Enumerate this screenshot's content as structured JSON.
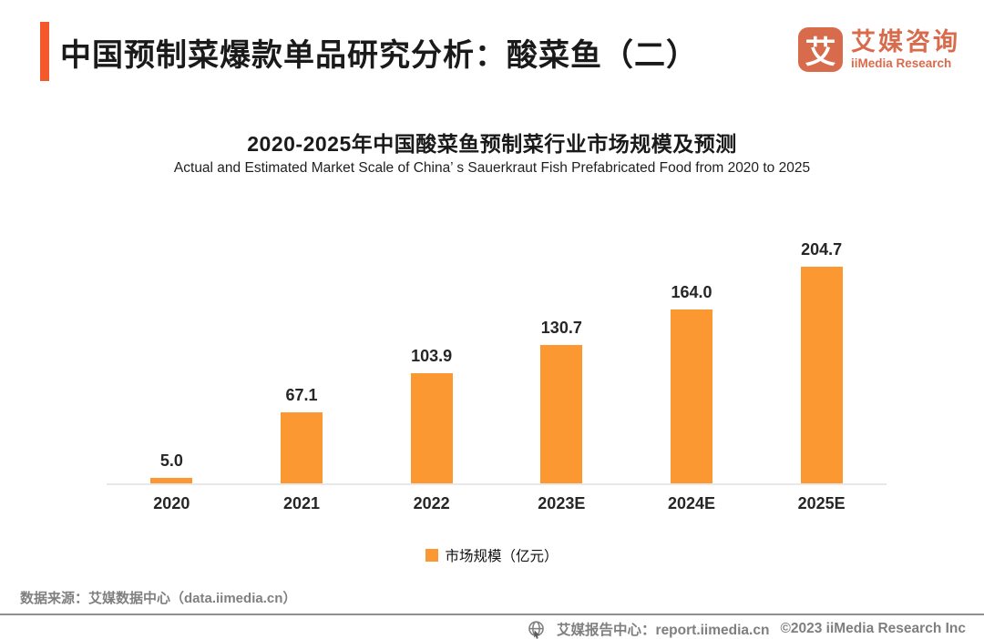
{
  "header": {
    "title": "中国预制菜爆款单品研究分析：酸菜鱼（二）",
    "logo": {
      "glyph": "艾",
      "name_cn": "艾媒咨询",
      "name_en": "iiMedia Research",
      "brand_color": "#D96B4D"
    },
    "accent_color": "#F4592C"
  },
  "chart_data": {
    "type": "bar",
    "title": "2020-2025年中国酸菜鱼预制菜行业市场规模及预测",
    "subtitle": "Actual and Estimated Market Scale of China’ s Sauerkraut Fish Prefabricated Food from 2020 to 2025",
    "categories": [
      "2020",
      "2021",
      "2022",
      "2023E",
      "2024E",
      "2025E"
    ],
    "values": [
      5.0,
      67.1,
      103.9,
      130.7,
      164.0,
      204.7
    ],
    "value_labels": [
      "5.0",
      "67.1",
      "103.9",
      "130.7",
      "164.0",
      "204.7"
    ],
    "series_name": "市场规模（亿元）",
    "bar_color": "#FB9831",
    "xlabel": "",
    "ylabel": "",
    "ylim": [
      0,
      220
    ],
    "grid": false,
    "legend_position": "bottom"
  },
  "legend": {
    "label": "市场规模（亿元）",
    "swatch_color": "#FB9831"
  },
  "footer": {
    "source": "数据来源：艾媒数据中心（data.iimedia.cn）",
    "report_center": "艾媒报告中心：report.iimedia.cn",
    "copyright": "©2023  iiMedia Research Inc"
  }
}
